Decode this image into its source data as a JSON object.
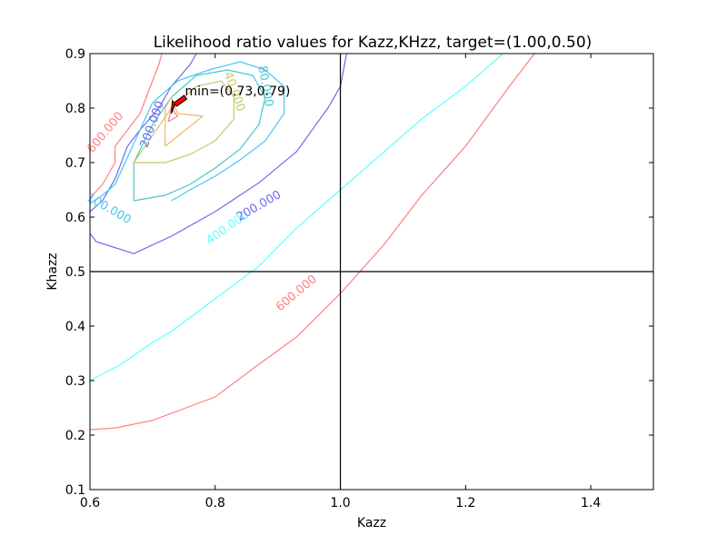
{
  "chart_data": {
    "type": "contour",
    "title": "Likelihood ratio values for Kazz,KHzz, target=(1.00,0.50)",
    "xlabel": "Kazz",
    "ylabel": "Khazz",
    "xlim": [
      0.6,
      1.5
    ],
    "ylim": [
      0.1,
      0.9
    ],
    "xticks": [
      "0.6",
      "0.8",
      "1.0",
      "1.2",
      "1.4"
    ],
    "yticks": [
      "0.1",
      "0.2",
      "0.3",
      "0.4",
      "0.5",
      "0.6",
      "0.7",
      "0.8",
      "0.9"
    ],
    "target_lines": {
      "x": 1.0,
      "y": 0.5
    },
    "annotation": {
      "text": "min=(0.73,0.79)",
      "point": [
        0.73,
        0.79
      ],
      "arrow_color": "#ff0000"
    },
    "contours": [
      {
        "level_label": "600.000",
        "color": "#ff7f7f",
        "label_at": [
          0.93,
          0.46
        ],
        "label_angle": -40,
        "points": [
          [
            0.6,
            0.21
          ],
          [
            0.64,
            0.213
          ],
          [
            0.7,
            0.227
          ],
          [
            0.73,
            0.24
          ],
          [
            0.8,
            0.27
          ],
          [
            0.87,
            0.33
          ],
          [
            0.93,
            0.38
          ],
          [
            1.0,
            0.46
          ],
          [
            1.07,
            0.55
          ],
          [
            1.13,
            0.64
          ],
          [
            1.2,
            0.73
          ],
          [
            1.27,
            0.84
          ],
          [
            1.31,
            0.9
          ]
        ]
      },
      {
        "level_label": "400.000",
        "color": "#5fffff",
        "label_at": [
          0.82,
          0.58
        ],
        "label_angle": -35,
        "points": [
          [
            0.6,
            0.3
          ],
          [
            0.65,
            0.33
          ],
          [
            0.7,
            0.37
          ],
          [
            0.73,
            0.39
          ],
          [
            0.8,
            0.45
          ],
          [
            0.87,
            0.51
          ],
          [
            0.93,
            0.58
          ],
          [
            1.0,
            0.65
          ],
          [
            1.07,
            0.72
          ],
          [
            1.13,
            0.78
          ],
          [
            1.2,
            0.84
          ],
          [
            1.26,
            0.9
          ]
        ]
      },
      {
        "level_label": "200.000",
        "color": "#6b6bf0",
        "label_at": [
          0.87,
          0.62
        ],
        "label_angle": -30,
        "points": [
          [
            0.6,
            0.57
          ],
          [
            0.61,
            0.555
          ],
          [
            0.67,
            0.533
          ],
          [
            0.73,
            0.565
          ],
          [
            0.8,
            0.61
          ],
          [
            0.87,
            0.663
          ],
          [
            0.93,
            0.72
          ],
          [
            0.98,
            0.8
          ],
          [
            1.0,
            0.84
          ],
          [
            1.01,
            0.9
          ]
        ]
      },
      {
        "level_label": "200.000",
        "color": "#6b6bf0",
        "label_at": [
          0.7,
          0.77
        ],
        "label_angle": -70,
        "points": [
          [
            0.6,
            0.61
          ],
          [
            0.62,
            0.63
          ],
          [
            0.64,
            0.67
          ],
          [
            0.66,
            0.73
          ],
          [
            0.68,
            0.76
          ],
          [
            0.71,
            0.8
          ],
          [
            0.73,
            0.84
          ],
          [
            0.76,
            0.88
          ],
          [
            0.77,
            0.9
          ]
        ]
      },
      {
        "level_label": "100.000",
        "color": "#46c7f0",
        "label_at": [
          0.63,
          0.615
        ],
        "label_angle": 30,
        "points": [
          [
            0.6,
            0.625
          ],
          [
            0.62,
            0.64
          ],
          [
            0.64,
            0.66
          ],
          [
            0.66,
            0.71
          ],
          [
            0.68,
            0.76
          ],
          [
            0.7,
            0.81
          ],
          [
            0.74,
            0.85
          ],
          [
            0.79,
            0.87
          ],
          [
            0.84,
            0.885
          ],
          [
            0.88,
            0.87
          ],
          [
            0.91,
            0.84
          ],
          [
            0.91,
            0.79
          ],
          [
            0.88,
            0.74
          ],
          [
            0.84,
            0.705
          ],
          [
            0.8,
            0.675
          ],
          [
            0.76,
            0.65
          ],
          [
            0.73,
            0.63
          ]
        ]
      },
      {
        "level_label": "80.000",
        "color": "#46c7c7",
        "label_at": [
          0.88,
          0.84
        ],
        "label_angle": 80,
        "points": [
          [
            0.67,
            0.63
          ],
          [
            0.67,
            0.7
          ],
          [
            0.7,
            0.77
          ],
          [
            0.73,
            0.82
          ],
          [
            0.77,
            0.86
          ],
          [
            0.82,
            0.87
          ],
          [
            0.86,
            0.86
          ],
          [
            0.88,
            0.82
          ],
          [
            0.87,
            0.77
          ],
          [
            0.84,
            0.725
          ],
          [
            0.8,
            0.69
          ],
          [
            0.76,
            0.66
          ],
          [
            0.72,
            0.64
          ],
          [
            0.67,
            0.63
          ]
        ]
      },
      {
        "level_label": "40.000",
        "color": "#c8c870",
        "label_at": [
          0.83,
          0.83
        ],
        "label_angle": 70,
        "points": [
          [
            0.67,
            0.7
          ],
          [
            0.7,
            0.75
          ],
          [
            0.73,
            0.8
          ],
          [
            0.77,
            0.84
          ],
          [
            0.81,
            0.85
          ],
          [
            0.83,
            0.82
          ],
          [
            0.83,
            0.78
          ],
          [
            0.8,
            0.74
          ],
          [
            0.76,
            0.715
          ],
          [
            0.72,
            0.7
          ],
          [
            0.67,
            0.7
          ]
        ]
      },
      {
        "level_label": "",
        "color": "#f0b860",
        "label_at": null,
        "label_angle": 0,
        "points": [
          [
            0.72,
            0.73
          ],
          [
            0.78,
            0.785
          ],
          [
            0.74,
            0.79
          ],
          [
            0.73,
            0.82
          ],
          [
            0.72,
            0.8
          ],
          [
            0.72,
            0.73
          ]
        ]
      },
      {
        "level_label": "",
        "color": "#ff7f7f",
        "label_at": null,
        "label_angle": 0,
        "points": [
          [
            0.725,
            0.775
          ],
          [
            0.74,
            0.785
          ],
          [
            0.73,
            0.8
          ],
          [
            0.725,
            0.775
          ]
        ]
      },
      {
        "level_label": "600.000",
        "color": "#ff7f7f",
        "label_at": [
          0.625,
          0.755
        ],
        "label_angle": -50,
        "points": [
          [
            0.6,
            0.635
          ],
          [
            0.62,
            0.66
          ],
          [
            0.64,
            0.7
          ],
          [
            0.64,
            0.73
          ],
          [
            0.68,
            0.79
          ],
          [
            0.69,
            0.82
          ],
          [
            0.7,
            0.85
          ],
          [
            0.71,
            0.88
          ],
          [
            0.715,
            0.9
          ]
        ]
      }
    ]
  }
}
